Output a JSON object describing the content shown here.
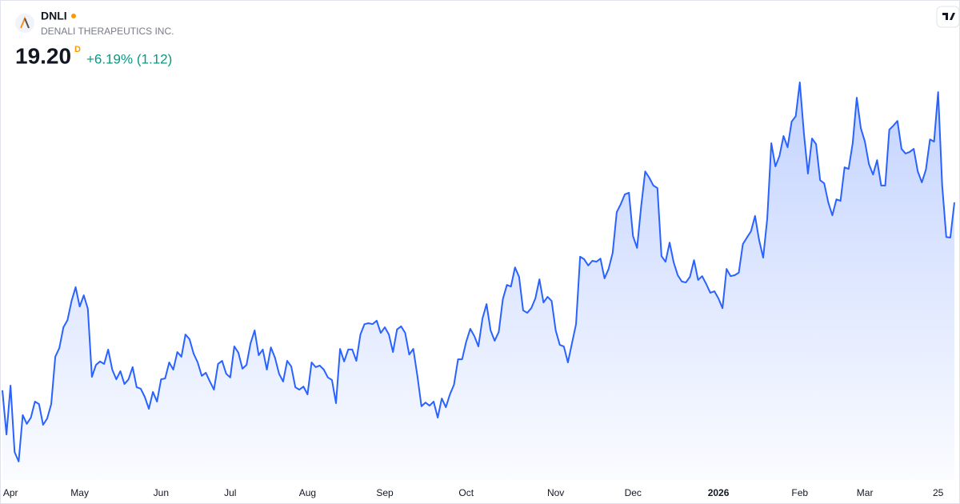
{
  "header": {
    "symbol": "DNLI",
    "name": "DENALI THERAPEUTICS INC.",
    "price": "19.20",
    "interval": "D",
    "change": "+6.19% (1.12)"
  },
  "chart_data": {
    "type": "area",
    "categories": [
      null,
      null,
      "Apr",
      null,
      null,
      null,
      null,
      null,
      null,
      null,
      null,
      null,
      null,
      null,
      null,
      null,
      null,
      null,
      null,
      "May",
      null,
      null,
      null,
      null,
      null,
      null,
      null,
      null,
      null,
      null,
      null,
      null,
      null,
      null,
      null,
      null,
      null,
      null,
      null,
      "Jun",
      null,
      null,
      null,
      null,
      null,
      null,
      null,
      null,
      null,
      null,
      null,
      null,
      null,
      null,
      null,
      null,
      "Jul",
      null,
      null,
      null,
      null,
      null,
      null,
      null,
      null,
      null,
      null,
      null,
      null,
      null,
      null,
      null,
      null,
      null,
      null,
      "Aug",
      null,
      null,
      null,
      null,
      null,
      null,
      null,
      null,
      null,
      null,
      null,
      null,
      null,
      null,
      null,
      null,
      null,
      null,
      "Sep",
      null,
      null,
      null,
      null,
      null,
      null,
      null,
      null,
      null,
      null,
      null,
      null,
      null,
      null,
      null,
      null,
      null,
      null,
      null,
      "Oct",
      null,
      null,
      null,
      null,
      null,
      null,
      null,
      null,
      null,
      null,
      null,
      null,
      null,
      null,
      null,
      null,
      null,
      null,
      null,
      null,
      null,
      "Nov",
      null,
      null,
      null,
      null,
      null,
      null,
      null,
      null,
      null,
      null,
      null,
      null,
      null,
      null,
      null,
      null,
      null,
      null,
      "Dec",
      null,
      null,
      null,
      null,
      null,
      null,
      null,
      null,
      null,
      null,
      null,
      null,
      null,
      null,
      null,
      null,
      null,
      null,
      null,
      null,
      "2026",
      null,
      null,
      null,
      null,
      null,
      null,
      null,
      null,
      null,
      null,
      null,
      null,
      null,
      null,
      null,
      null,
      null,
      null,
      null,
      "Feb",
      null,
      null,
      null,
      null,
      null,
      null,
      null,
      null,
      null,
      null,
      null,
      null,
      null,
      null,
      null,
      "Mar",
      null,
      null,
      null,
      null,
      null,
      null,
      null,
      null,
      null,
      null,
      null,
      null,
      null,
      null,
      null,
      null,
      null,
      "25",
      null,
      null,
      null,
      null
    ],
    "series": [
      {
        "color": "#2962ff",
        "values": [
          13.21,
          11.8,
          13.36,
          11.24,
          10.94,
          12.42,
          12.14,
          12.34,
          12.85,
          12.77,
          12.11,
          12.31,
          12.77,
          14.28,
          14.56,
          15.22,
          15.45,
          16.06,
          16.5,
          15.88,
          16.24,
          15.81,
          13.64,
          14.02,
          14.13,
          14.05,
          14.51,
          13.87,
          13.56,
          13.82,
          13.41,
          13.56,
          13.95,
          13.31,
          13.26,
          13.0,
          12.62,
          13.16,
          12.85,
          13.56,
          13.59,
          14.1,
          13.87,
          14.43,
          14.28,
          14.99,
          14.84,
          14.38,
          14.1,
          13.67,
          13.77,
          13.49,
          13.23,
          14.05,
          14.15,
          13.74,
          13.62,
          14.61,
          14.41,
          13.9,
          14.02,
          14.71,
          15.12,
          14.33,
          14.51,
          13.87,
          14.58,
          14.25,
          13.74,
          13.49,
          14.15,
          13.97,
          13.31,
          13.23,
          13.33,
          13.08,
          14.1,
          13.95,
          14.0,
          13.87,
          13.62,
          13.54,
          12.8,
          14.53,
          14.13,
          14.51,
          14.51,
          14.15,
          14.99,
          15.32,
          15.35,
          15.32,
          15.43,
          15.04,
          15.22,
          14.99,
          14.43,
          15.15,
          15.25,
          15.04,
          14.35,
          14.53,
          13.67,
          12.7,
          12.82,
          12.72,
          12.85,
          12.34,
          12.95,
          12.67,
          13.08,
          13.39,
          14.2,
          14.2,
          14.76,
          15.17,
          14.94,
          14.61,
          15.5,
          15.96,
          15.12,
          14.79,
          15.07,
          16.11,
          16.57,
          16.52,
          17.13,
          16.83,
          15.76,
          15.68,
          15.83,
          16.14,
          16.75,
          16.01,
          16.19,
          16.06,
          15.12,
          14.66,
          14.61,
          14.1,
          14.71,
          15.32,
          17.47,
          17.39,
          17.19,
          17.34,
          17.31,
          17.41,
          16.78,
          17.08,
          17.59,
          18.89,
          19.15,
          19.46,
          19.51,
          18.13,
          17.75,
          19.07,
          20.19,
          19.99,
          19.74,
          19.66,
          17.49,
          17.31,
          17.92,
          17.29,
          16.88,
          16.68,
          16.65,
          16.83,
          17.36,
          16.73,
          16.85,
          16.6,
          16.32,
          16.37,
          16.14,
          15.83,
          17.08,
          16.85,
          16.88,
          16.96,
          17.87,
          18.08,
          18.28,
          18.77,
          18.0,
          17.44,
          18.69,
          21.09,
          20.35,
          20.68,
          21.32,
          20.96,
          21.78,
          21.95,
          23.03,
          21.42,
          20.12,
          21.24,
          21.06,
          19.91,
          19.81,
          19.2,
          18.79,
          19.3,
          19.25,
          20.32,
          20.27,
          21.09,
          22.54,
          21.57,
          21.14,
          20.42,
          20.09,
          20.55,
          19.74,
          19.74,
          21.52,
          21.65,
          21.8,
          20.91,
          20.76,
          20.81,
          20.91,
          20.19,
          19.84,
          20.25,
          21.21,
          21.14,
          22.72,
          19.74,
          18.1,
          18.08,
          19.2
        ]
      }
    ],
    "ylim": [
      10.35,
      23.36
    ]
  }
}
